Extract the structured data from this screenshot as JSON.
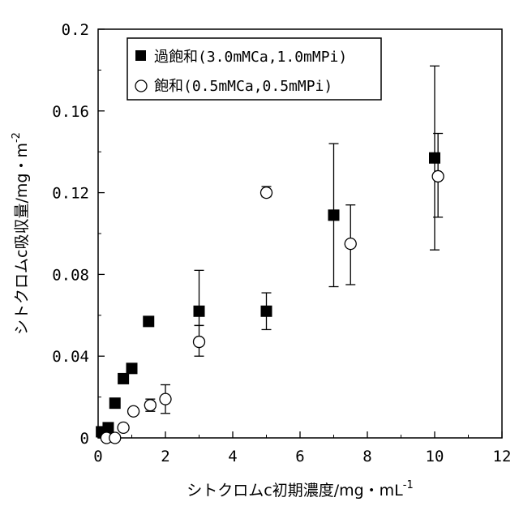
{
  "chart_data": {
    "type": "scatter",
    "xlabel": "シトクロムc初期濃度/mg・mL",
    "xlabel_sup": "-1",
    "ylabel": "シトクロムc吸収量/mg・m",
    "ylabel_sup": "-2",
    "xlim": [
      0,
      12
    ],
    "ylim": [
      0,
      0.2
    ],
    "x_ticks": [
      0,
      2,
      4,
      6,
      8,
      10,
      12
    ],
    "y_ticks": [
      0,
      0.04,
      0.08,
      0.12,
      0.16,
      0.2
    ],
    "x_tick_labels": [
      "0",
      "2",
      "4",
      "6",
      "8",
      "10",
      "12"
    ],
    "y_tick_labels": [
      "0",
      "0.04",
      "0.08",
      "0.12",
      "0.16",
      "0.2"
    ],
    "grid": false,
    "legend_position": "top-left",
    "series": [
      {
        "name": "過飽和(3.0mMCa,1.0mMPi)",
        "marker": "filled-square",
        "color": "#000000",
        "points": [
          {
            "x": 0.1,
            "y": 0.003
          },
          {
            "x": 0.3,
            "y": 0.005
          },
          {
            "x": 0.5,
            "y": 0.017
          },
          {
            "x": 0.75,
            "y": 0.029
          },
          {
            "x": 1.0,
            "y": 0.034
          },
          {
            "x": 1.5,
            "y": 0.057
          },
          {
            "x": 3.0,
            "y": 0.062,
            "err_low": 0.055,
            "err_high": 0.082
          },
          {
            "x": 5.0,
            "y": 0.062,
            "err_low": 0.053,
            "err_high": 0.071
          },
          {
            "x": 7.0,
            "y": 0.109,
            "err_low": 0.074,
            "err_high": 0.144
          },
          {
            "x": 10.0,
            "y": 0.137,
            "err_low": 0.092,
            "err_high": 0.182
          }
        ]
      },
      {
        "name": "飽和(0.5mMCa,0.5mMPi)",
        "marker": "open-circle",
        "color": "#000000",
        "points": [
          {
            "x": 0.25,
            "y": 0.0
          },
          {
            "x": 0.5,
            "y": 0.0
          },
          {
            "x": 0.75,
            "y": 0.005
          },
          {
            "x": 1.05,
            "y": 0.013
          },
          {
            "x": 1.55,
            "y": 0.016,
            "err_low": 0.013,
            "err_high": 0.019
          },
          {
            "x": 2.0,
            "y": 0.019,
            "err_low": 0.012,
            "err_high": 0.026
          },
          {
            "x": 3.0,
            "y": 0.047,
            "err_low": 0.04,
            "err_high": 0.055
          },
          {
            "x": 5.0,
            "y": 0.12,
            "err_low": 0.118,
            "err_high": 0.123
          },
          {
            "x": 7.5,
            "y": 0.095,
            "err_low": 0.075,
            "err_high": 0.114
          },
          {
            "x": 10.1,
            "y": 0.128,
            "err_low": 0.108,
            "err_high": 0.149
          }
        ]
      }
    ]
  }
}
